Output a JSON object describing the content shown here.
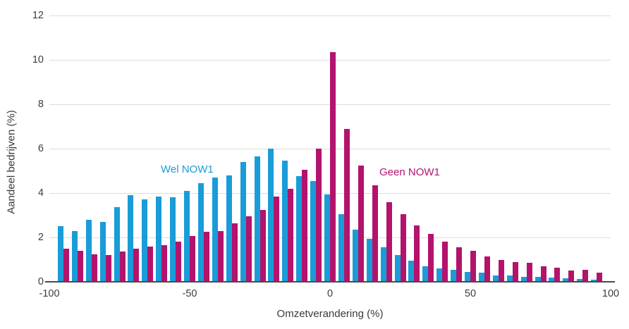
{
  "chart_data": {
    "type": "bar",
    "title": "",
    "xlabel": "Omzetverandering (%)",
    "ylabel": "Aandeel bedrijven (%)",
    "x": [
      -95,
      -90,
      -85,
      -80,
      -75,
      -70,
      -65,
      -60,
      -55,
      -50,
      -45,
      -40,
      -35,
      -30,
      -25,
      -20,
      -15,
      -10,
      -5,
      0,
      5,
      10,
      15,
      20,
      25,
      30,
      35,
      40,
      45,
      50,
      55,
      60,
      65,
      70,
      75,
      80,
      85,
      90,
      95
    ],
    "series": [
      {
        "name": "Wel NOW1",
        "color": "#1a9cd8",
        "values": [
          2.5,
          2.3,
          2.8,
          2.7,
          3.35,
          3.9,
          3.7,
          3.85,
          3.8,
          4.1,
          4.45,
          4.7,
          4.8,
          5.4,
          5.65,
          6.0,
          5.45,
          4.75,
          4.55,
          3.95,
          3.05,
          2.35,
          1.95,
          1.55,
          1.2,
          0.95,
          0.7,
          0.6,
          0.55,
          0.45,
          0.4,
          0.3,
          0.3,
          0.22,
          0.23,
          0.18,
          0.15,
          0.12,
          0.1
        ]
      },
      {
        "name": "Geen NOW1",
        "color": "#b3136d",
        "values": [
          1.5,
          1.4,
          1.25,
          1.2,
          1.35,
          1.5,
          1.6,
          1.65,
          1.8,
          2.05,
          2.25,
          2.3,
          2.65,
          2.95,
          3.25,
          3.85,
          4.2,
          5.05,
          6.0,
          10.35,
          6.9,
          5.25,
          4.35,
          3.6,
          3.05,
          2.55,
          2.15,
          1.8,
          1.55,
          1.4,
          1.15,
          1.0,
          0.9,
          0.85,
          0.7,
          0.65,
          0.5,
          0.55,
          0.4
        ]
      }
    ],
    "xlim": [
      -100,
      100
    ],
    "ylim": [
      0,
      12
    ],
    "x_ticks": [
      -100,
      -50,
      0,
      50,
      100
    ],
    "y_ticks": [
      0,
      2,
      4,
      6,
      8,
      10,
      12
    ],
    "grid": "horizontal",
    "legend_position": "inside-plot"
  },
  "colors": {
    "wel_now1": "#1a9cd8",
    "geen_now1": "#b3136d",
    "gridline": "#dcdcdc",
    "axis_line": "#4a4a4a",
    "tick_text": "#3d3d3d"
  }
}
